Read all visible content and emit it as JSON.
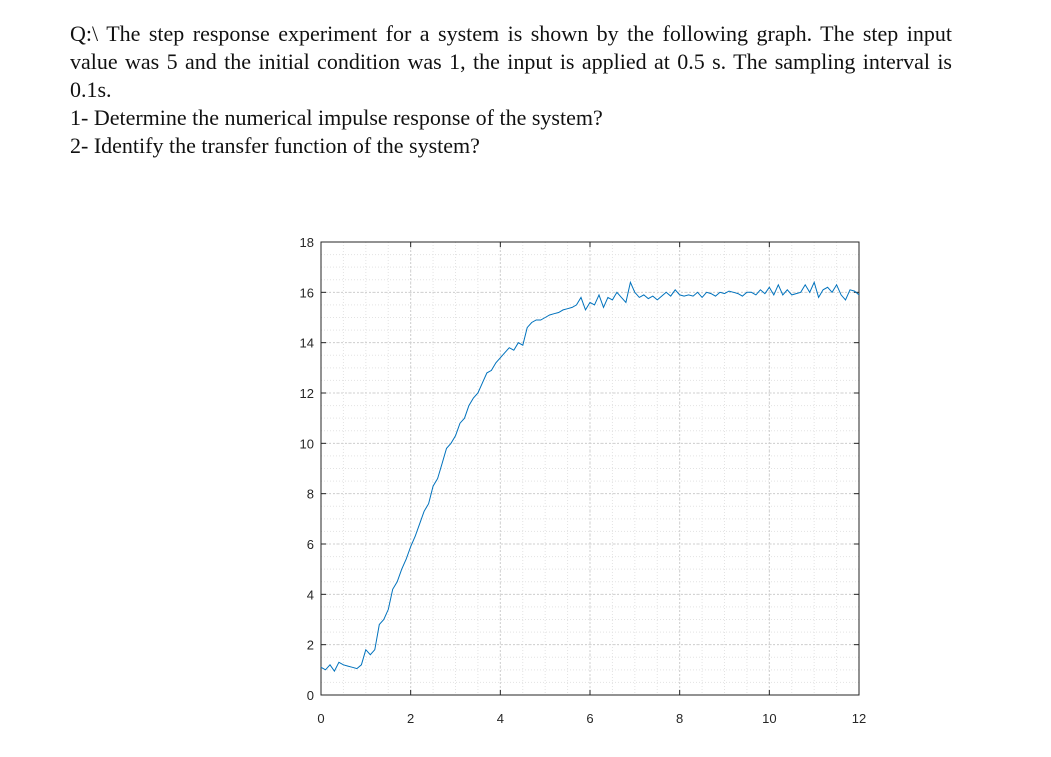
{
  "question": {
    "paragraph": "Q:\\ The step response experiment for a system is shown by the following graph. The step input value was 5 and the initial condition was 1, the input is applied at 0.5 s. The sampling interval is 0.1s.",
    "item1": "1- Determine the numerical impulse response of the system?",
    "item2": "2- Identify the transfer function of the system?"
  },
  "chart_data": {
    "type": "line",
    "title": "",
    "xlabel": "",
    "ylabel": "",
    "xlim": [
      0,
      12
    ],
    "ylim": [
      0,
      18
    ],
    "xticks": [
      0,
      2,
      4,
      6,
      8,
      10,
      12
    ],
    "yticks": [
      0,
      2,
      4,
      6,
      8,
      10,
      12,
      14,
      16,
      18
    ],
    "grid": "major and minor (dotted)",
    "color": "#0072bd",
    "series": [
      {
        "x": [
          0,
          0.1,
          0.2,
          0.3,
          0.4,
          0.5,
          0.6,
          0.7,
          0.8,
          0.9,
          1.0,
          1.1,
          1.2,
          1.3,
          1.4,
          1.5,
          1.6,
          1.7,
          1.8,
          1.9,
          2.0,
          2.1,
          2.2,
          2.3,
          2.4,
          2.5,
          2.6,
          2.7,
          2.8,
          2.9,
          3.0,
          3.1,
          3.2,
          3.3,
          3.4,
          3.5,
          3.6,
          3.7,
          3.8,
          3.9,
          4.0,
          4.1,
          4.2,
          4.3,
          4.4,
          4.5,
          4.6,
          4.7,
          4.8,
          4.9,
          5.0,
          5.1,
          5.2,
          5.3,
          5.4,
          5.5,
          5.6,
          5.7,
          5.8,
          5.9,
          6.0,
          6.1,
          6.2,
          6.3,
          6.4,
          6.5,
          6.6,
          6.7,
          6.8,
          6.9,
          7.0,
          7.1,
          7.2,
          7.3,
          7.4,
          7.5,
          7.6,
          7.7,
          7.8,
          7.9,
          8.0,
          8.1,
          8.2,
          8.3,
          8.4,
          8.5,
          8.6,
          8.7,
          8.8,
          8.9,
          9.0,
          9.1,
          9.2,
          9.3,
          9.4,
          9.5,
          9.6,
          9.7,
          9.8,
          9.9,
          10.0,
          10.1,
          10.2,
          10.3,
          10.4,
          10.5,
          10.6,
          10.7,
          10.8,
          10.9,
          11.0,
          11.1,
          11.2,
          11.3,
          11.4,
          11.5,
          11.6,
          11.7,
          11.8,
          11.9,
          12.0
        ],
        "y": [
          1.1,
          1.0,
          1.2,
          0.95,
          1.3,
          1.2,
          1.15,
          1.1,
          1.05,
          1.2,
          1.8,
          1.6,
          1.8,
          2.8,
          3.0,
          3.4,
          4.2,
          4.5,
          5.0,
          5.4,
          5.9,
          6.3,
          6.8,
          7.3,
          7.6,
          8.3,
          8.6,
          9.2,
          9.8,
          10.0,
          10.3,
          10.8,
          11.0,
          11.5,
          11.8,
          12.0,
          12.4,
          12.8,
          12.9,
          13.2,
          13.4,
          13.6,
          13.8,
          13.7,
          14.0,
          13.9,
          14.6,
          14.8,
          14.9,
          14.9,
          15.0,
          15.1,
          15.15,
          15.2,
          15.3,
          15.35,
          15.4,
          15.5,
          15.8,
          15.3,
          15.6,
          15.5,
          15.9,
          15.4,
          15.8,
          15.7,
          16.0,
          15.8,
          15.6,
          16.4,
          16.0,
          15.8,
          15.9,
          15.75,
          15.85,
          15.7,
          15.85,
          16.0,
          15.85,
          16.1,
          15.9,
          15.85,
          15.9,
          15.85,
          16.0,
          15.8,
          16.0,
          15.95,
          15.85,
          16.0,
          15.95,
          16.05,
          16.0,
          15.95,
          15.85,
          16.0,
          16.0,
          15.9,
          16.1,
          15.95,
          16.2,
          15.9,
          16.3,
          15.9,
          16.1,
          15.9,
          15.95,
          16.0,
          16.3,
          16.0,
          16.4,
          15.8,
          16.1,
          16.2,
          16.0,
          16.3,
          15.9,
          15.7,
          16.1,
          16.05,
          15.9
        ]
      }
    ]
  }
}
